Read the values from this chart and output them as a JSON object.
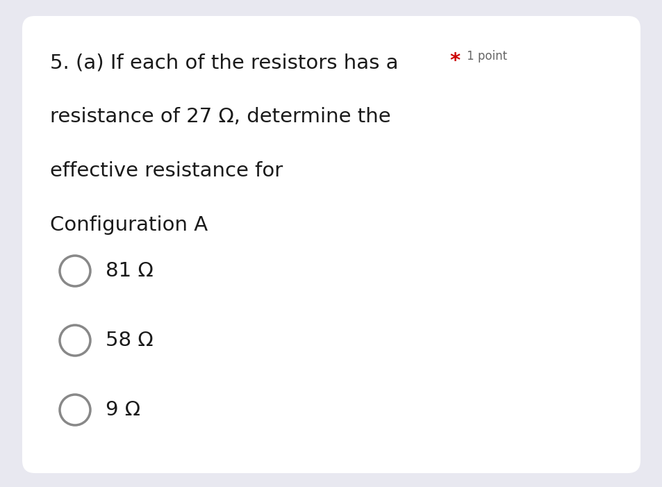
{
  "background_outer": "#e8e8f0",
  "background_inner": "#ffffff",
  "question_text_line1": "5. (a) If each of the resistors has a",
  "asterisk": "*",
  "point_text": "1 point",
  "question_text_line2": "resistance of 27 Ω, determine the",
  "question_text_line3": "effective resistance for",
  "question_text_line4": "Configuration A",
  "options": [
    "81 Ω",
    "58 Ω",
    "9 Ω"
  ],
  "text_color": "#1a1a1a",
  "asterisk_color": "#cc0000",
  "point_color": "#666666",
  "circle_color": "#888888",
  "main_font_size": 21,
  "point_font_size": 12,
  "option_font_size": 21,
  "circle_linewidth": 2.5
}
